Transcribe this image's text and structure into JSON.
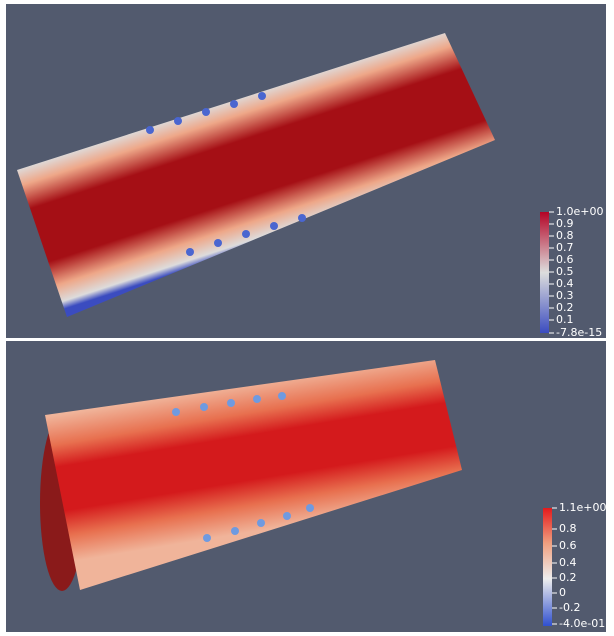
{
  "panels": [
    {
      "colorbar": {
        "labels": [
          "1.0e+00",
          "0.9",
          "0.8",
          "0.7",
          "0.6",
          "0.5",
          "0.4",
          "0.3",
          "0.2",
          "0.1",
          "-7.8e-15"
        ]
      }
    },
    {
      "colorbar": {
        "labels": [
          "1.1e+00",
          "0.8",
          "0.6",
          "0.4",
          "0.2",
          "0",
          "-0.2",
          "-4.0e-01"
        ]
      }
    }
  ]
}
